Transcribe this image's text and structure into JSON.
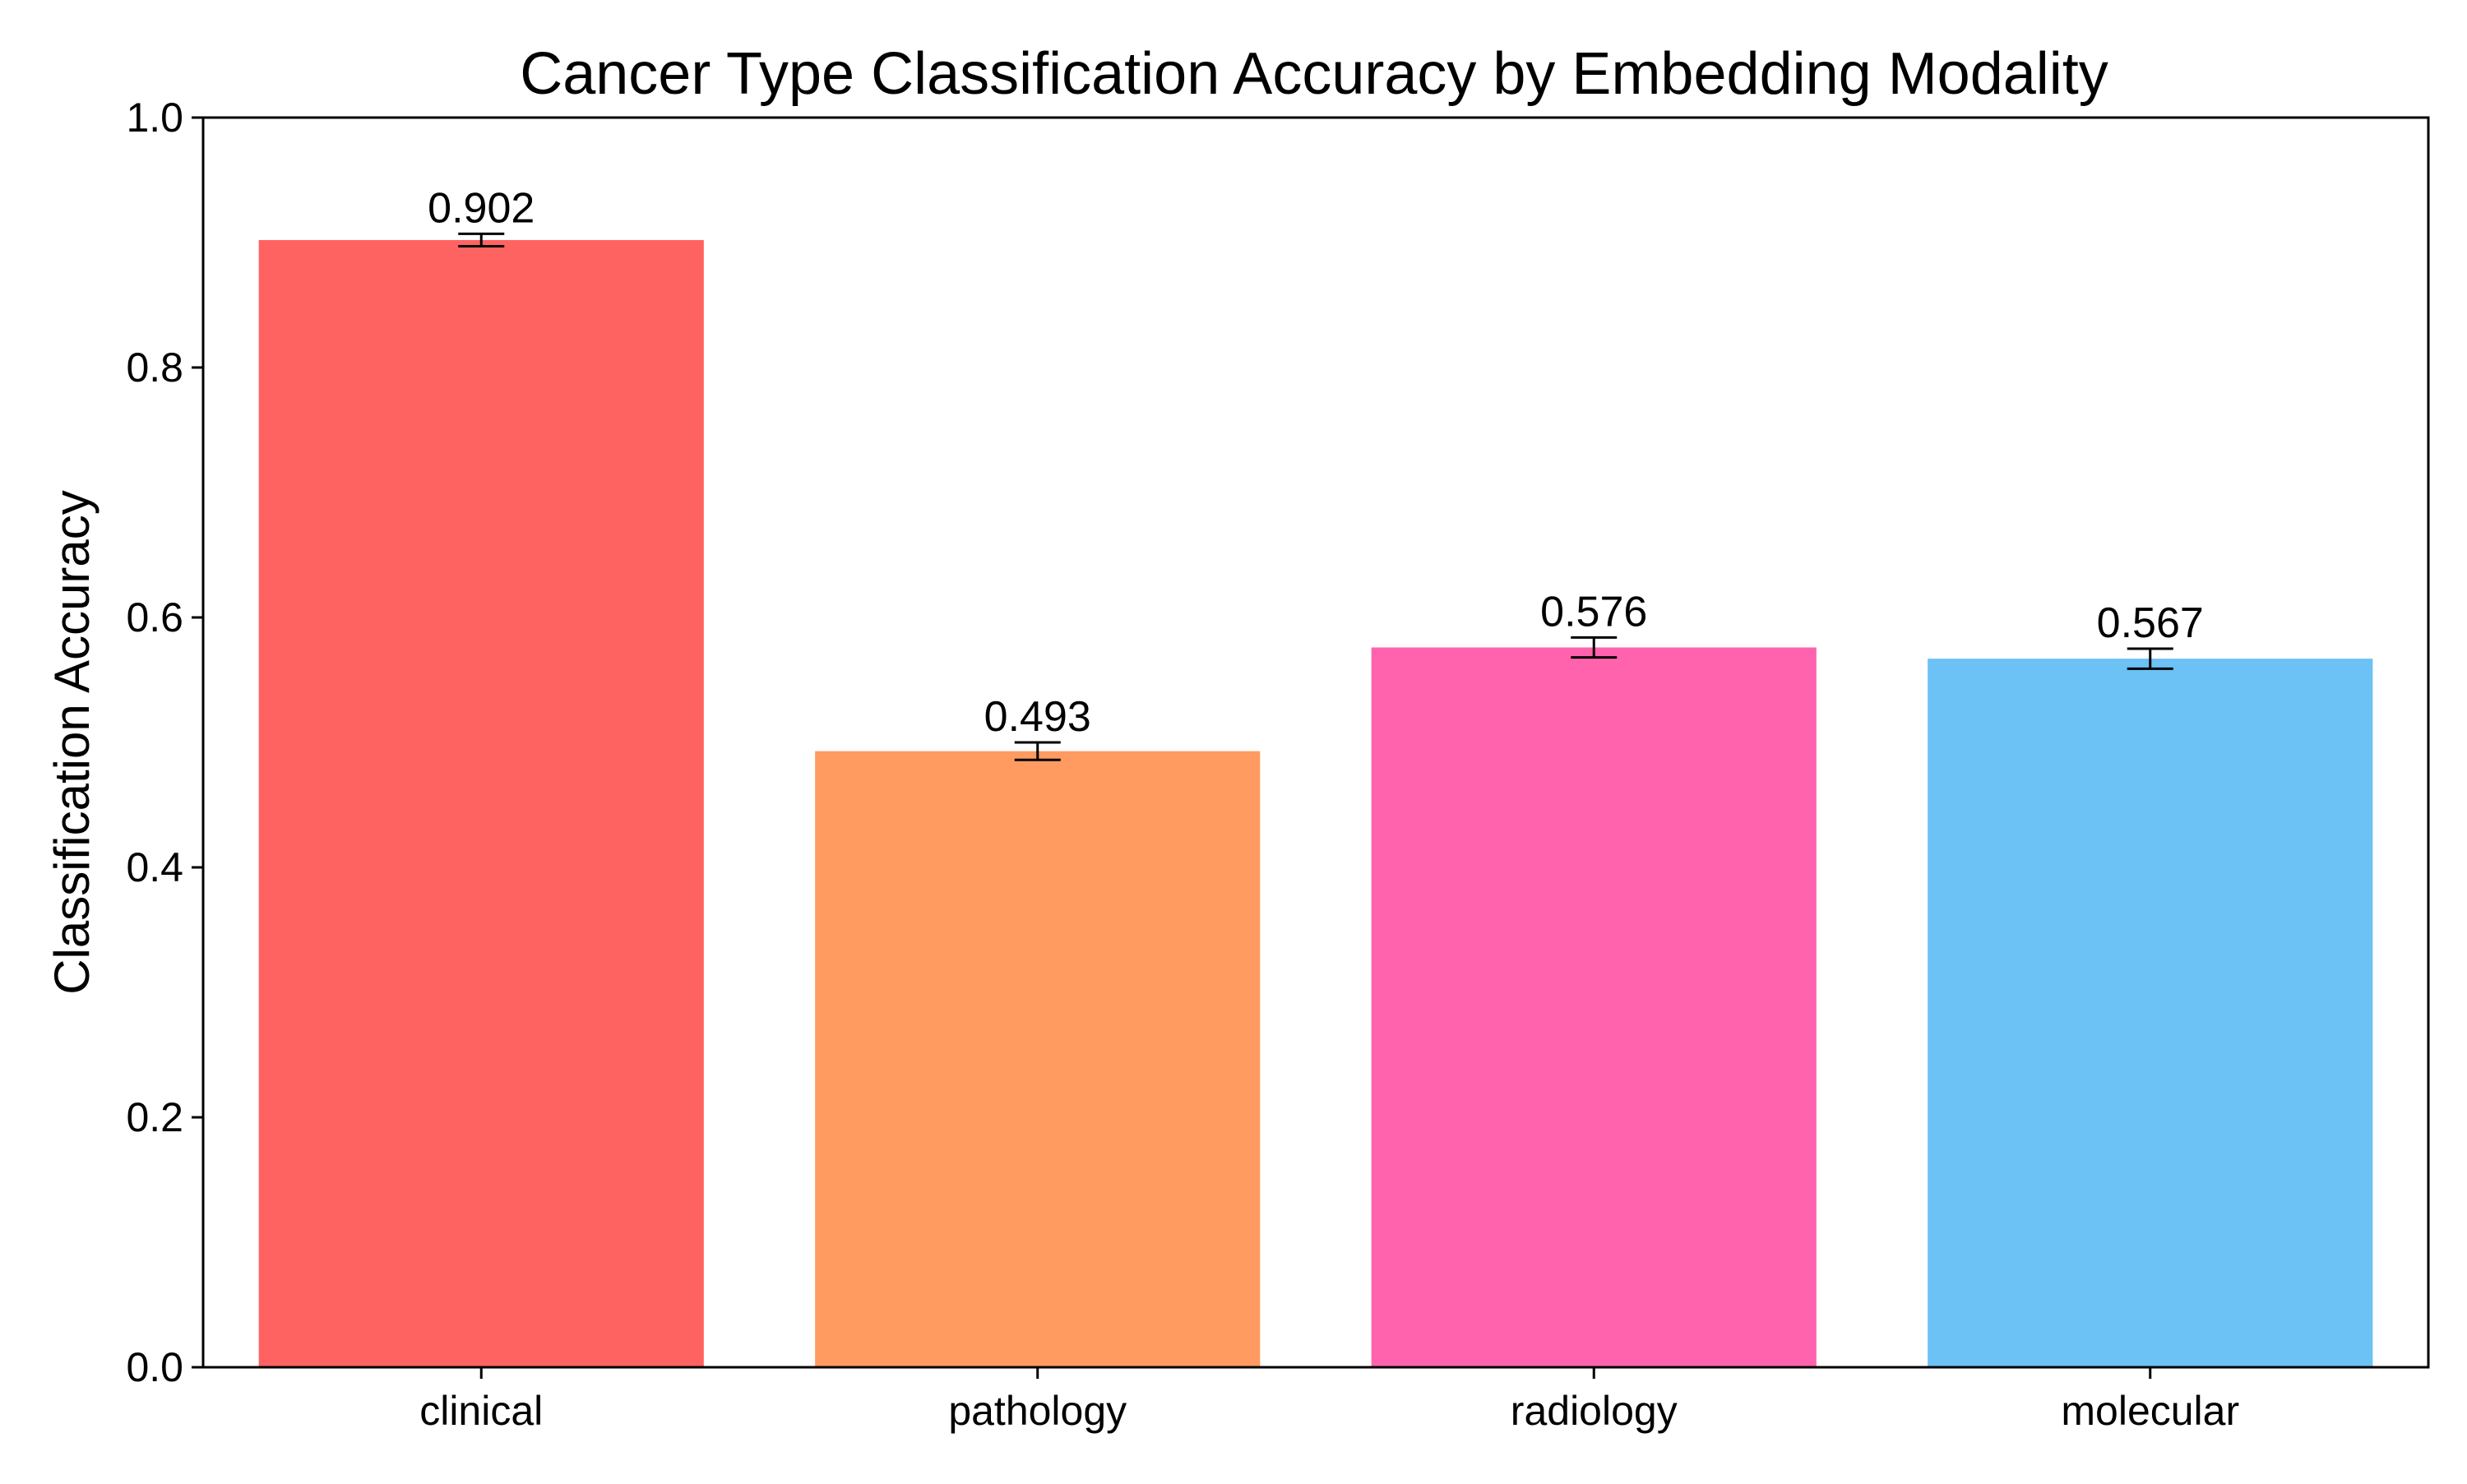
{
  "chart_data": {
    "type": "bar",
    "title": "Cancer Type Classification Accuracy by Embedding Modality",
    "xlabel": "",
    "ylabel": "Classification Accuracy",
    "categories": [
      "clinical",
      "pathology",
      "radiology",
      "molecular"
    ],
    "values": [
      0.902,
      0.493,
      0.576,
      0.567
    ],
    "value_labels": [
      "0.902",
      "0.493",
      "0.576",
      "0.567"
    ],
    "errors": [
      0.005,
      0.007,
      0.008,
      0.008
    ],
    "colors": [
      "#FF6361",
      "#FF9B61",
      "#FF63AE",
      "#6CC1F5"
    ],
    "ylim": [
      0,
      1.0
    ],
    "yticks": [
      0.0,
      0.2,
      0.4,
      0.6,
      0.8,
      1.0
    ],
    "ytick_labels": [
      "0.0",
      "0.2",
      "0.4",
      "0.6",
      "0.8",
      "1.0"
    ],
    "grid": false,
    "legend": "none"
  }
}
